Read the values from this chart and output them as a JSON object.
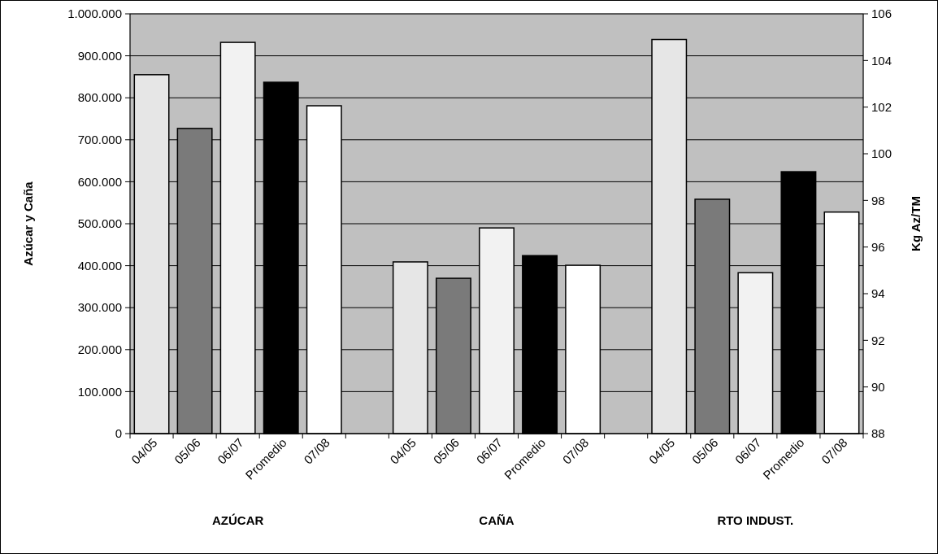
{
  "chart_data": {
    "type": "bar",
    "categories": [
      "04/05",
      "05/06",
      "06/07",
      "Promedio",
      "07/08",
      null,
      "04/05",
      "05/06",
      "06/07",
      "Promedio",
      "07/08",
      null,
      "04/05",
      "05/06",
      "06/07",
      "Promedio",
      "07/08"
    ],
    "series": [
      {
        "colors": [
          "#e6e6e6",
          "#7a7a7a",
          "#f2f2f2",
          "#000000",
          "#ffffff",
          null,
          "#e6e6e6",
          "#7a7a7a",
          "#f2f2f2",
          "#000000",
          "#ffffff",
          null,
          null,
          null,
          null,
          null,
          null
        ],
        "values": [
          855000,
          727000,
          932000,
          837000,
          781000,
          null,
          409000,
          370000,
          490000,
          424000,
          401000,
          null,
          null,
          null,
          null,
          null,
          null
        ]
      },
      {
        "axis": "y2",
        "colors": [
          null,
          null,
          null,
          null,
          null,
          null,
          null,
          null,
          null,
          null,
          null,
          null,
          "#e6e6e6",
          "#7a7a7a",
          "#f2f2f2",
          "#000000",
          "#ffffff"
        ],
        "values": [
          null,
          null,
          null,
          null,
          null,
          null,
          null,
          null,
          null,
          null,
          null,
          null,
          104.9,
          98.05,
          94.9,
          99.23,
          97.5
        ]
      }
    ],
    "ylabel": "Azúcar y Caña",
    "y2label": "Kg Az/TM",
    "ylim": [
      0,
      1000000
    ],
    "yticks": [
      0,
      {
        "value": 100000,
        "label": "100.000"
      },
      {
        "value": 200000,
        "label": "200.000"
      },
      {
        "value": 300000,
        "label": "300.000"
      },
      {
        "value": 400000,
        "label": "400.000"
      },
      {
        "value": 500000,
        "label": "500.000"
      },
      {
        "value": 600000,
        "label": "600.000"
      },
      {
        "value": 700000,
        "label": "700.000"
      },
      {
        "value": 800000,
        "label": "800.000"
      },
      {
        "value": 900000,
        "label": "900.000"
      },
      {
        "value": 1000000,
        "label": "1.000.000"
      }
    ],
    "y2lim": [
      88,
      106
    ],
    "y2ticks": [
      88,
      90,
      92,
      94,
      96,
      98,
      100,
      102,
      104,
      106
    ],
    "annotations": [
      "AZÚCAR",
      "CAÑA",
      "RTO INDUST."
    ],
    "grid": "y"
  }
}
